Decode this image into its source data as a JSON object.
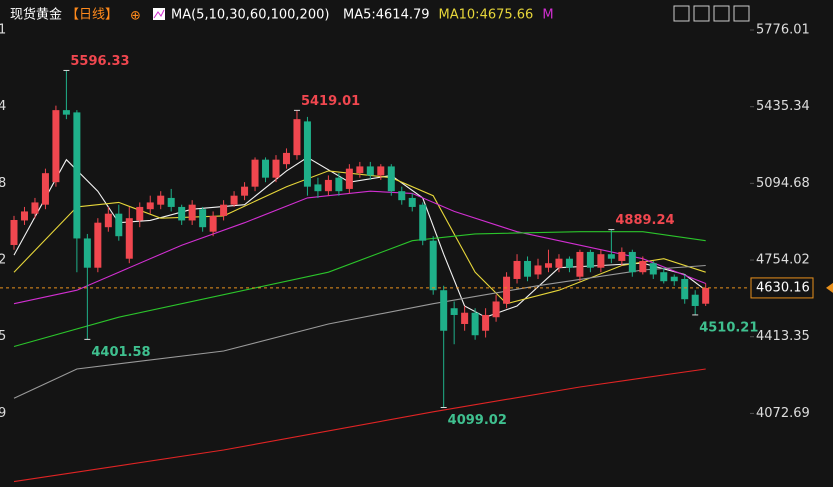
{
  "header": {
    "symbol": "现货黄金",
    "period": "【日线】",
    "indicator": "MA(5,10,30,60,100,200)",
    "readouts": [
      {
        "text": "MA5:4614.79",
        "color": "#ffffff"
      },
      {
        "text": "MA10:4675.66",
        "color": "#e6d63a"
      },
      {
        "text": "M",
        "color": "#d12fd1"
      }
    ]
  },
  "chart_data": {
    "type": "candlestick",
    "up_color": "#f0474f",
    "down_color": "#1fb08a",
    "open": [
      4821,
      4930,
      4960,
      5000,
      5100,
      5420,
      5410,
      4850,
      4720,
      4900,
      4960,
      4760,
      4930,
      4980,
      5000,
      5030,
      4990,
      4930,
      4980,
      4880,
      4950,
      5000,
      5040,
      5080,
      5200,
      5120,
      5180,
      5220,
      5370,
      5090,
      5060,
      5120,
      5070,
      5140,
      5170,
      5130,
      5170,
      5060,
      5030,
      5000,
      4840,
      4620,
      4540,
      4470,
      4520,
      4440,
      4500,
      4560,
      4670,
      4750,
      4690,
      4720,
      4720,
      4760,
      4680,
      4790,
      4720,
      4780,
      4750,
      4790,
      4700,
      4740,
      4700,
      4680,
      4670,
      4600,
      4560
    ],
    "high": [
      4950,
      4990,
      5030,
      5160,
      5440,
      5596.33,
      5420,
      4870,
      4940,
      4990,
      5000,
      4990,
      5010,
      5040,
      5060,
      5070,
      5000,
      5020,
      4990,
      4970,
      5020,
      5060,
      5100,
      5210,
      5210,
      5220,
      5250,
      5419.01,
      5390,
      5120,
      5130,
      5140,
      5180,
      5190,
      5190,
      5180,
      5180,
      5080,
      5050,
      5010,
      4860,
      4640,
      4570,
      4550,
      4540,
      4540,
      4600,
      4700,
      4780,
      4770,
      4760,
      4800,
      4780,
      4770,
      4800,
      4800,
      4800,
      4889.24,
      4810,
      4800,
      4770,
      4750,
      4720,
      4690,
      4690,
      4620,
      4650
    ],
    "low": [
      4800,
      4910,
      4940,
      4980,
      5080,
      5380,
      4700,
      4401.58,
      4700,
      4880,
      4840,
      4740,
      4900,
      4960,
      4980,
      4970,
      4910,
      4910,
      4880,
      4860,
      4930,
      4990,
      5020,
      5060,
      5100,
      5100,
      5160,
      5200,
      5040,
      5030,
      5040,
      5040,
      5050,
      5120,
      5110,
      5110,
      5040,
      5000,
      4970,
      4820,
      4600,
      4099.02,
      4380,
      4440,
      4400,
      4410,
      4480,
      4540,
      4650,
      4660,
      4670,
      4700,
      4700,
      4700,
      4660,
      4700,
      4700,
      4740,
      4730,
      4680,
      4690,
      4670,
      4650,
      4640,
      4560,
      4510.21,
      4550
    ],
    "close": [
      4932,
      4970,
      5010,
      5140,
      5420,
      5400,
      4850,
      4720,
      4920,
      4960,
      4860,
      4940,
      4990,
      5010,
      5040,
      4990,
      4930,
      5000,
      4900,
      4950,
      5000,
      5040,
      5080,
      5200,
      5120,
      5200,
      5230,
      5380,
      5080,
      5060,
      5110,
      5060,
      5160,
      5170,
      5130,
      5170,
      5060,
      5020,
      4990,
      4840,
      4620,
      4440,
      4510,
      4520,
      4420,
      4510,
      4570,
      4680,
      4750,
      4680,
      4730,
      4740,
      4760,
      4720,
      4790,
      4720,
      4780,
      4760,
      4790,
      4700,
      4750,
      4690,
      4660,
      4660,
      4580,
      4550,
      4630.16
    ],
    "ma": [
      {
        "name": "MA5",
        "color": "#f2f2f2",
        "x": [
          0,
          5,
          8,
          10,
          13,
          17,
          22,
          26,
          28,
          32,
          36,
          39,
          41,
          43,
          45,
          48,
          52,
          56,
          60,
          64,
          66
        ],
        "values": [
          4776,
          5200,
          5060,
          4920,
          4930,
          4980,
          5000,
          5150,
          5210,
          5100,
          5130,
          5030,
          4780,
          4550,
          4500,
          4550,
          4720,
          4730,
          4740,
          4690,
          4620
        ]
      },
      {
        "name": "MA10",
        "color": "#e6d63a",
        "x": [
          0,
          6,
          10,
          14,
          20,
          26,
          30,
          36,
          40,
          44,
          47,
          52,
          58,
          62,
          66
        ],
        "values": [
          4700,
          4990,
          5010,
          4940,
          4950,
          5080,
          5150,
          5120,
          5040,
          4700,
          4560,
          4620,
          4730,
          4760,
          4700
        ]
      },
      {
        "name": "MA30",
        "color": "#d12fd1",
        "x": [
          0,
          6,
          10,
          16,
          22,
          28,
          34,
          38,
          42,
          48,
          54,
          60,
          66
        ],
        "values": [
          4560,
          4620,
          4700,
          4820,
          4920,
          5030,
          5060,
          5050,
          4970,
          4880,
          4820,
          4760,
          4650
        ]
      },
      {
        "name": "MA60",
        "color": "#2bc42b",
        "x": [
          0,
          10,
          20,
          30,
          38,
          44,
          54,
          60,
          66
        ],
        "values": [
          4370,
          4500,
          4600,
          4700,
          4840,
          4870,
          4880,
          4880,
          4840
        ]
      },
      {
        "name": "MA100",
        "color": "#9a9a9a",
        "x": [
          0,
          6,
          20,
          30,
          40,
          50,
          60,
          66
        ],
        "values": [
          4140,
          4270,
          4350,
          4470,
          4560,
          4640,
          4710,
          4730
        ]
      },
      {
        "name": "MA200",
        "color": "#e02424",
        "x": [
          0,
          20,
          40,
          54,
          66
        ],
        "values": [
          3770,
          3910,
          4080,
          4190,
          4270
        ]
      }
    ],
    "annotations": [
      {
        "candle": 5,
        "at": "high",
        "color": "#f0474f"
      },
      {
        "candle": 27,
        "at": "high",
        "color": "#f0474f"
      },
      {
        "candle": 57,
        "at": "high",
        "color": "#f0474f"
      },
      {
        "candle": 7,
        "at": "low",
        "color": "#3fc08f"
      },
      {
        "candle": 41,
        "at": "low",
        "color": "#3fc08f"
      },
      {
        "candle": 65,
        "at": "low",
        "color": "#3fc08f"
      }
    ],
    "ylim": [
      3745.8,
      5909.3
    ],
    "yticks": [
      5776.01,
      5435.34,
      5094.68,
      4754.02,
      4413.35,
      4072.69
    ],
    "left_axis_labels": [
      "1",
      "4",
      "8",
      "2",
      "5",
      "9"
    ],
    "price_line_color": "#e8901c"
  }
}
